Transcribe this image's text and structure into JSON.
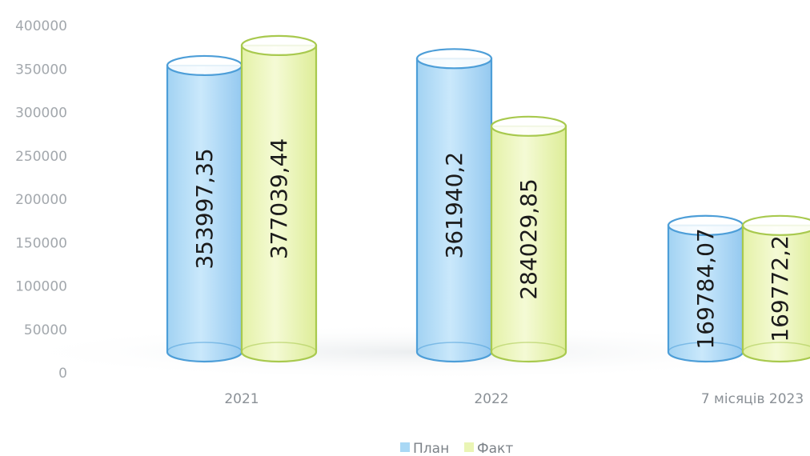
{
  "chart_data": {
    "type": "bar",
    "style": "3d-cylinder",
    "categories": [
      "2021",
      "2022",
      "7 місяців 2023"
    ],
    "series": [
      {
        "name": "План",
        "values": [
          353997.35,
          361940.2,
          169784.07
        ],
        "labels": [
          "353997,35",
          "361940,2",
          "169784,07"
        ],
        "color": "#a9d8f5",
        "stroke": "#4d9ed8"
      },
      {
        "name": "Факт",
        "values": [
          377039.44,
          284029.85,
          169772.2
        ],
        "labels": [
          "377039,44",
          "284029,85",
          "169772,2"
        ],
        "color": "#eaf5b5",
        "stroke": "#a8c94e"
      }
    ],
    "y_ticks": [
      "0",
      "50000",
      "100000",
      "150000",
      "200000",
      "250000",
      "300000",
      "350000",
      "400000"
    ],
    "ylim": [
      0,
      400000
    ],
    "grid": false,
    "legend_position": "bottom-center",
    "title": "",
    "xlabel": "",
    "ylabel": ""
  }
}
